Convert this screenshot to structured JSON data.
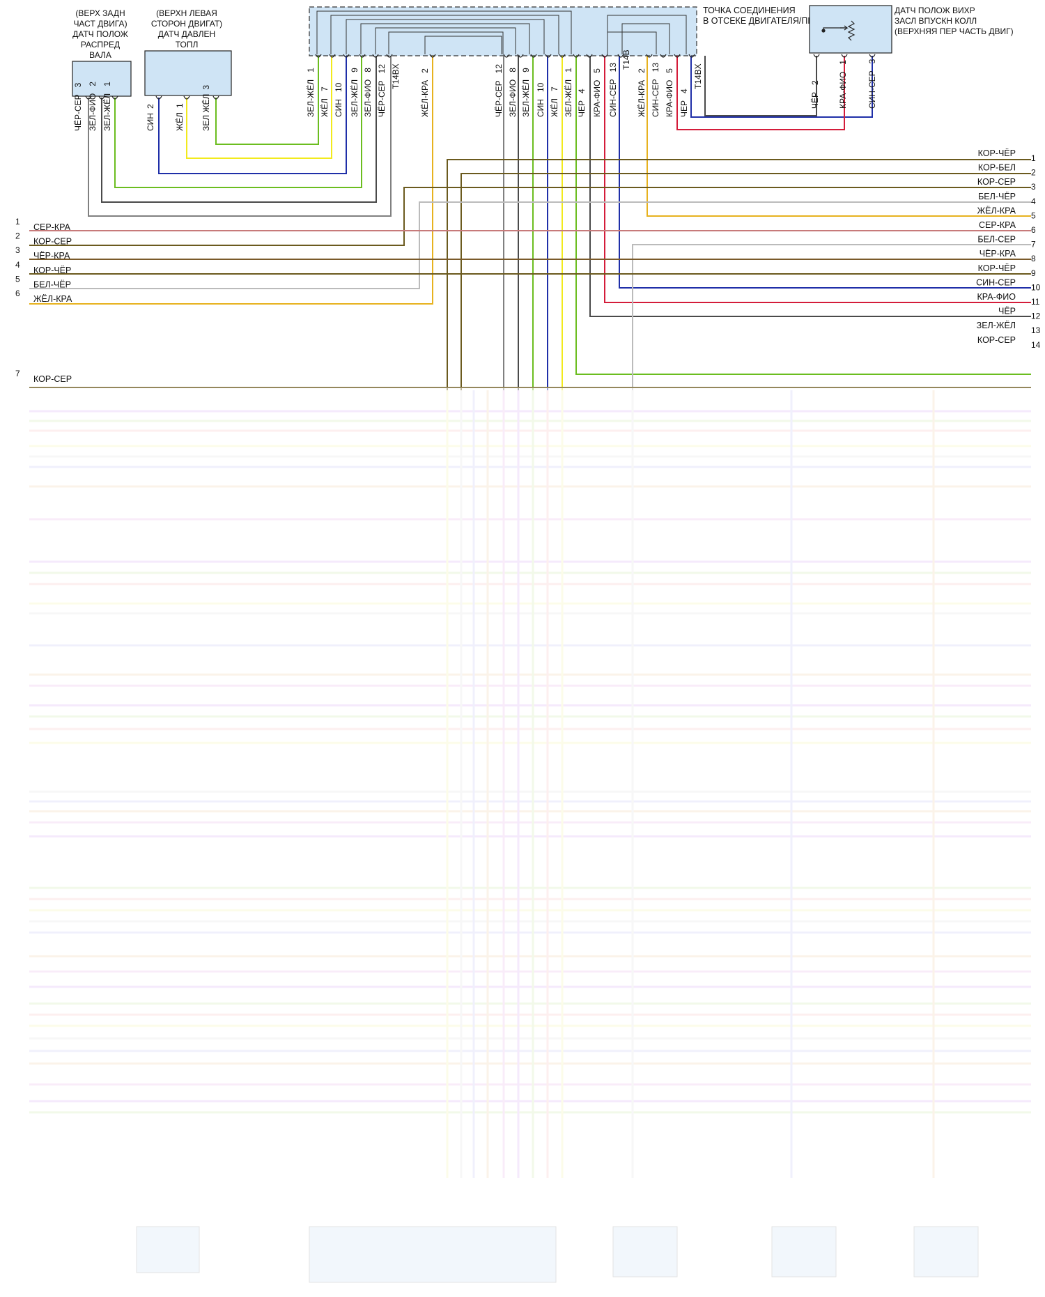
{
  "components": {
    "cam_sensor": {
      "title": [
        "(ВЕРХ ЗАДН",
        "ЧАСТ ДВИГА)",
        "ДАТЧ ПОЛОЖ",
        "РАСПРЕД",
        "ВАЛА"
      ],
      "pins": [
        {
          "num": "3",
          "wire": "ЧЁР-СЕР"
        },
        {
          "num": "2",
          "wire": "ЗЕЛ-ФИО"
        },
        {
          "num": "1",
          "wire": "ЗЕЛ-ЖЁЛ"
        }
      ]
    },
    "fuel_sensor": {
      "title": [
        "(ВЕРХН ЛЕВАЯ",
        "СТОРОН ДВИГАТ)",
        "ДАТЧ ДАВЛЕН",
        "ТОПЛ"
      ],
      "pins": [
        {
          "num": "2",
          "wire": "СИН"
        },
        {
          "num": "1",
          "wire": "ЖЁЛ"
        },
        {
          "num": "3",
          "wire": "ЗЕЛ ЖЁЛ"
        }
      ]
    },
    "junction": {
      "title": [
        "ТОЧКА СОЕДИНЕНИЯ",
        "В ОТСЕКЕ ДВИГАТЕЛЯ/ПРИВОДА"
      ],
      "connector_a": "T14BX",
      "connector_b": "T14B",
      "pins": [
        {
          "num": "1",
          "wire": "ЗЕЛ-ЖЁЛ"
        },
        {
          "num": "7",
          "wire": "ЖЁЛ"
        },
        {
          "num": "10",
          "wire": "СИН"
        },
        {
          "num": "9",
          "wire": "ЗЕЛ-ЖЁЛ"
        },
        {
          "num": "8",
          "wire": "ЗЕЛ-ФИО"
        },
        {
          "num": "12",
          "wire": "ЧЁР-СЕР"
        },
        {
          "num": "2",
          "wire": "ЖЁЛ-КРА"
        },
        {
          "num": "12",
          "wire": "ЧЁР-СЕР"
        },
        {
          "num": "8",
          "wire": "ЗЕЛ-ФИО"
        },
        {
          "num": "9",
          "wire": "ЗЕЛ-ЖЁЛ"
        },
        {
          "num": "10",
          "wire": "СИН"
        },
        {
          "num": "7",
          "wire": "ЖЁЛ"
        },
        {
          "num": "1",
          "wire": "ЗЕЛ-ЖЁЛ"
        },
        {
          "num": "4",
          "wire": "ЧЕР"
        },
        {
          "num": "5",
          "wire": "КРА-ФИО"
        },
        {
          "num": "13",
          "wire": "СИН-СЕР"
        },
        {
          "num": "2",
          "wire": "ЖЁЛ-КРА"
        },
        {
          "num": "13",
          "wire": "СИН-СЕР"
        },
        {
          "num": "5",
          "wire": "КРА-ФИО"
        },
        {
          "num": "4",
          "wire": "ЧЕР"
        }
      ]
    },
    "swirl_sensor": {
      "title": [
        "ДАТЧ ПОЛОЖ ВИХР",
        "ЗАСЛ ВПУСКН КОЛЛ",
        "(ВЕРХНЯЯ ПЕР ЧАСТЬ ДВИГ)"
      ],
      "pins": [
        {
          "num": "2",
          "wire": "ЧЁР"
        },
        {
          "num": "1",
          "wire": "КРА-ФИО"
        },
        {
          "num": "3",
          "wire": "СИН-СЕР"
        }
      ]
    }
  },
  "harness_right": [
    {
      "num": "1",
      "wire": "КОР-ЧЁР"
    },
    {
      "num": "2",
      "wire": "КОР-БЕЛ"
    },
    {
      "num": "3",
      "wire": "КОР-СЕР"
    },
    {
      "num": "4",
      "wire": "БЕЛ-ЧЁР"
    },
    {
      "num": "5",
      "wire": "ЖЁЛ-КРА"
    },
    {
      "num": "6",
      "wire": "СЕР-КРА"
    },
    {
      "num": "7",
      "wire": "БЕЛ-СЕР"
    },
    {
      "num": "8",
      "wire": "ЧЁР-КРА"
    },
    {
      "num": "9",
      "wire": "КОР-ЧЁР"
    },
    {
      "num": "10",
      "wire": "СИН-СЕР"
    },
    {
      "num": "11",
      "wire": "КРА-ФИО"
    },
    {
      "num": "12",
      "wire": "ЧЁР"
    },
    {
      "num": "13",
      "wire": "ЗЕЛ-ЖЁЛ"
    },
    {
      "num": "14",
      "wire": "КОР-СЕР"
    }
  ],
  "harness_left": [
    {
      "num": "1",
      "wire": "СЕР-КРА"
    },
    {
      "num": "2",
      "wire": "КОР-СЕР"
    },
    {
      "num": "3",
      "wire": "ЧЁР-КРА"
    },
    {
      "num": "4",
      "wire": "КОР-ЧЁР"
    },
    {
      "num": "5",
      "wire": "БЕЛ-ЧЁР"
    },
    {
      "num": "6",
      "wire": "ЖЁЛ-КРА"
    },
    {
      "num": "7",
      "wire": "КОР-СЕР"
    }
  ],
  "colors": {
    "green": "#6bbd1f",
    "yellow": "#f2ea1d",
    "blue": "#1f2fa8",
    "olive": "#6b5a1e",
    "gray": "#808080",
    "lightgray": "#bbbbbb",
    "darkgray": "#4a4a4a",
    "black": "#111111",
    "red": "#d41c3a",
    "ochre": "#e7b21f",
    "brown": "#7a5a2a",
    "pink": "#c77a7a",
    "violet": "#b04ee0",
    "box": "#cfe4f5"
  }
}
